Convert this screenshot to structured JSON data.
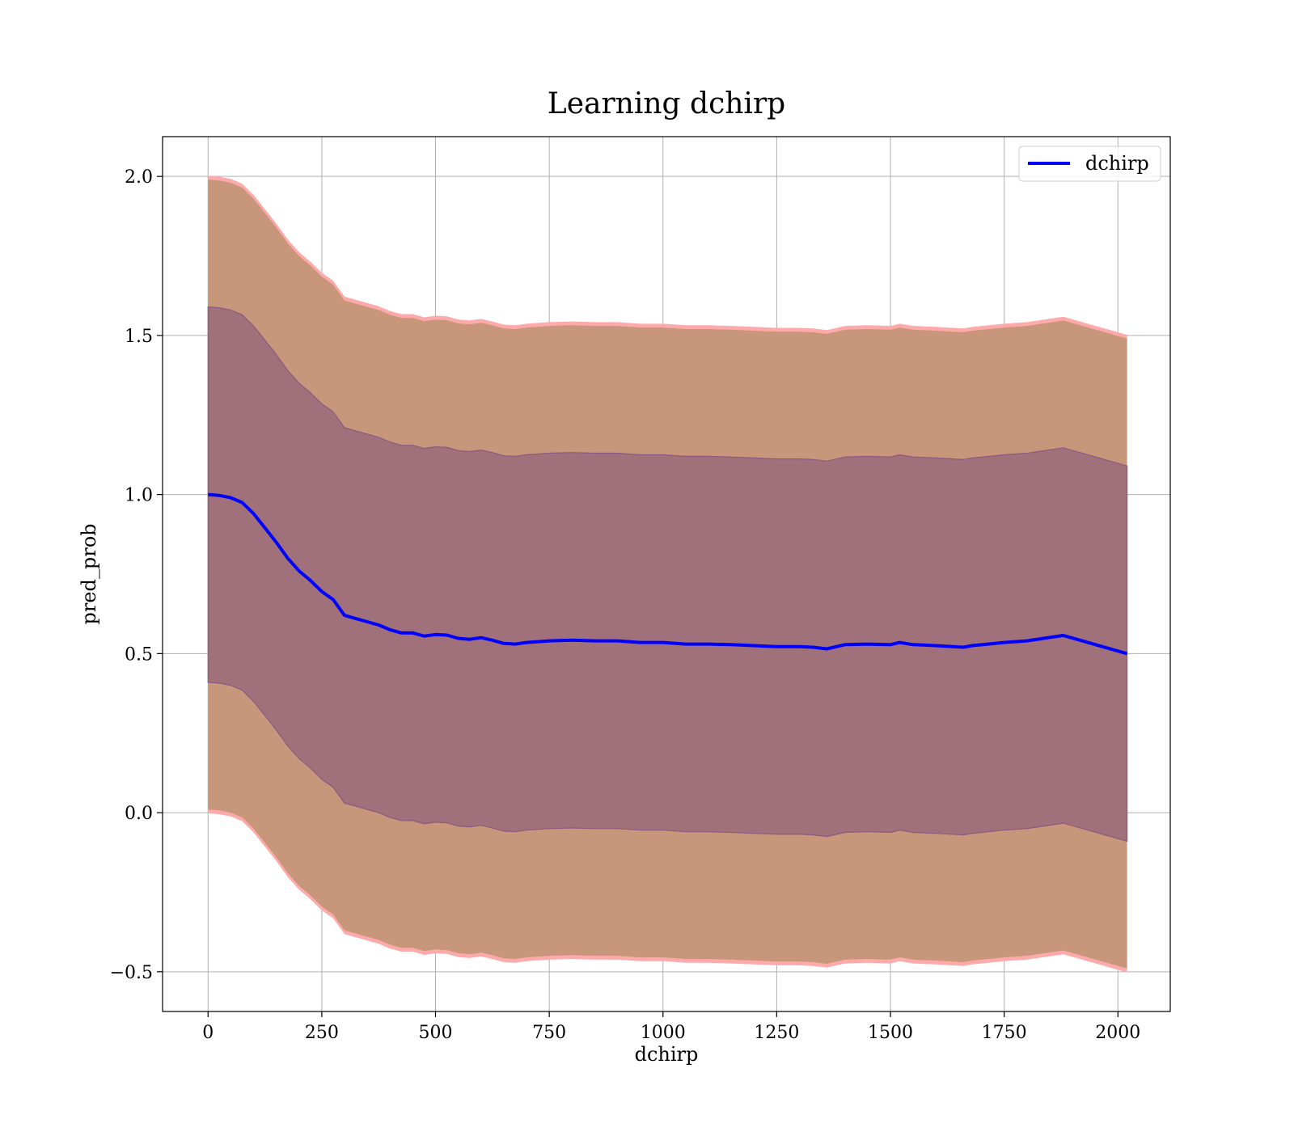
{
  "chart_data": {
    "type": "line",
    "title": "Learning dchirp",
    "xlabel": "dchirp",
    "ylabel": "pred_prob",
    "xlim": [
      -100,
      2115
    ],
    "ylim": [
      -0.625,
      2.125
    ],
    "x_ticks": [
      0,
      250,
      500,
      750,
      1000,
      1250,
      1500,
      1750,
      2000
    ],
    "x_tick_labels": [
      "0",
      "250",
      "500",
      "750",
      "1000",
      "1250",
      "1500",
      "1750",
      "2000"
    ],
    "y_ticks": [
      -0.5,
      0.0,
      0.5,
      1.0,
      1.5,
      2.0
    ],
    "y_tick_labels": [
      "−0.5",
      "0.0",
      "0.5",
      "1.0",
      "1.5",
      "2.0"
    ],
    "grid": true,
    "legend": {
      "position": "top-right",
      "entries": [
        {
          "label": "dchirp",
          "color": "#0000ff"
        }
      ]
    },
    "colors": {
      "line": "#0000ff",
      "outer_band": "#c8967a",
      "inner_band": "#a0717a",
      "outer_edge": "#ffaaaa",
      "inner_edge": "#8a5a80"
    },
    "series": [
      {
        "name": "dchirp",
        "x": [
          0,
          25,
          50,
          75,
          100,
          125,
          150,
          175,
          200,
          225,
          250,
          275,
          300,
          325,
          350,
          375,
          400,
          425,
          450,
          475,
          500,
          525,
          550,
          575,
          600,
          625,
          650,
          675,
          700,
          750,
          800,
          850,
          900,
          950,
          1000,
          1050,
          1100,
          1150,
          1200,
          1250,
          1300,
          1330,
          1360,
          1400,
          1450,
          1500,
          1520,
          1550,
          1600,
          1660,
          1680,
          1750,
          1800,
          1880,
          2020
        ],
        "y": [
          1.0,
          0.997,
          0.99,
          0.975,
          0.94,
          0.895,
          0.85,
          0.8,
          0.76,
          0.73,
          0.695,
          0.67,
          0.62,
          0.61,
          0.6,
          0.59,
          0.575,
          0.565,
          0.565,
          0.555,
          0.56,
          0.558,
          0.548,
          0.545,
          0.55,
          0.542,
          0.532,
          0.53,
          0.535,
          0.54,
          0.542,
          0.54,
          0.54,
          0.535,
          0.535,
          0.53,
          0.53,
          0.528,
          0.525,
          0.522,
          0.522,
          0.52,
          0.515,
          0.528,
          0.53,
          0.528,
          0.535,
          0.528,
          0.525,
          0.52,
          0.525,
          0.535,
          0.54,
          0.557,
          0.5
        ]
      }
    ],
    "bands": [
      {
        "lower_offset": -0.99,
        "upper_offset": 0.99
      },
      {
        "lower_offset": -0.59,
        "upper_offset": 0.59
      }
    ]
  }
}
